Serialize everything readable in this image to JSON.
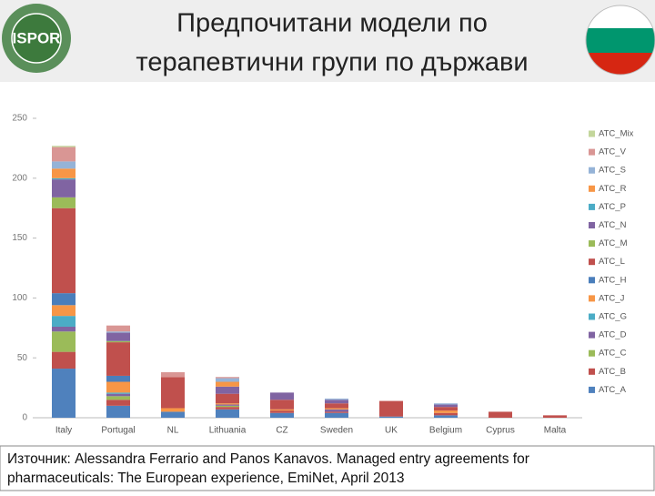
{
  "header": {
    "title_line1": "Предпочитани модели по",
    "title_line2": "терапевтични групи по държави",
    "logo": "ISPOR"
  },
  "chart_data": {
    "type": "stacked_bar",
    "categories": [
      "Italy",
      "Portugal",
      "NL",
      "Lithuania",
      "CZ",
      "Sweden",
      "UK",
      "Belgium",
      "Cyprus",
      "Malta"
    ],
    "ylim": [
      0,
      250
    ],
    "yticks": [
      0,
      50,
      100,
      150,
      200,
      250
    ],
    "grid": false,
    "legend": "right",
    "series": [
      {
        "name": "ATC_A",
        "color": "#4f81bd",
        "values": [
          41,
          10,
          5,
          7,
          4,
          4,
          1,
          2,
          0,
          0
        ]
      },
      {
        "name": "ATC_B",
        "color": "#c0504d",
        "values": [
          14,
          5,
          0,
          2,
          2,
          1,
          0,
          2,
          0,
          0
        ]
      },
      {
        "name": "ATC_C",
        "color": "#9bbb59",
        "values": [
          17,
          3,
          0,
          1,
          0,
          0,
          0,
          0,
          0,
          0
        ]
      },
      {
        "name": "ATC_D",
        "color": "#8064a2",
        "values": [
          4,
          2,
          0,
          1,
          0,
          2,
          0,
          0,
          0,
          0
        ]
      },
      {
        "name": "ATC_G",
        "color": "#4bacc6",
        "values": [
          9,
          1,
          0,
          0,
          0,
          0,
          0,
          0,
          0,
          0
        ]
      },
      {
        "name": "ATC_J",
        "color": "#f79646",
        "values": [
          9,
          9,
          3,
          1,
          1,
          1,
          0,
          2,
          0,
          0
        ]
      },
      {
        "name": "ATC_H",
        "color": "#4a7ebb",
        "values": [
          10,
          5,
          0,
          0,
          0,
          0,
          0,
          0,
          0,
          0
        ]
      },
      {
        "name": "ATC_L",
        "color": "#c0504d",
        "values": [
          71,
          28,
          26,
          8,
          8,
          4,
          13,
          3,
          5,
          2
        ]
      },
      {
        "name": "ATC_M",
        "color": "#9bbb59",
        "values": [
          9,
          1,
          0,
          0,
          0,
          0,
          0,
          0,
          0,
          0
        ]
      },
      {
        "name": "ATC_N",
        "color": "#8064a2",
        "values": [
          15,
          7,
          0,
          6,
          6,
          3,
          0,
          2,
          0,
          0
        ]
      },
      {
        "name": "ATC_P",
        "color": "#4bacc6",
        "values": [
          1,
          0,
          0,
          0,
          0,
          0,
          0,
          0,
          0,
          0
        ]
      },
      {
        "name": "ATC_R",
        "color": "#f79646",
        "values": [
          8,
          0,
          0,
          4,
          0,
          0,
          0,
          0,
          0,
          0
        ]
      },
      {
        "name": "ATC_S",
        "color": "#95b3d7",
        "values": [
          6,
          1,
          0,
          3,
          0,
          1,
          0,
          1,
          0,
          0
        ]
      },
      {
        "name": "ATC_V",
        "color": "#d99694",
        "values": [
          12,
          5,
          4,
          1,
          0,
          0,
          0,
          0,
          0,
          0
        ]
      },
      {
        "name": "ATC_Mix",
        "color": "#c3d69b",
        "values": [
          1,
          0,
          0,
          0,
          0,
          0,
          0,
          0,
          0,
          0
        ]
      }
    ]
  },
  "source": {
    "line1": "Източник: Alessandra Ferrario and Panos Kanavos. Managed entry agreements for",
    "line2": "pharmaceuticals: The European experience, EmiNet, April 2013"
  }
}
